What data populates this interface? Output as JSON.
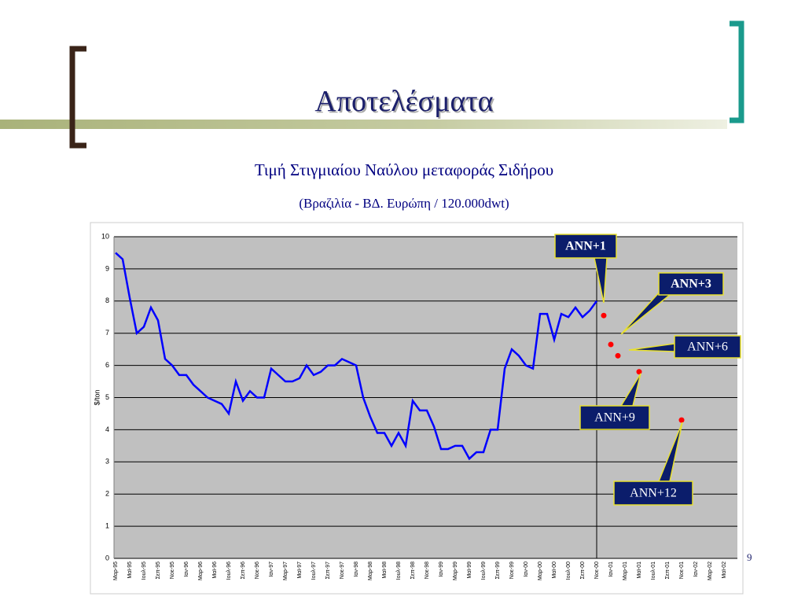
{
  "slide": {
    "title": "Αποτελέσματα",
    "page_number": "9"
  },
  "chart_data": {
    "type": "line",
    "title": "Τιμή Στιγμιαίου Ναύλου μεταφοράς Σιδήρου",
    "subtitle": "(Βραζιλία - ΒΔ. Ευρώπη / 120.000dwt)",
    "y_label": "$/ton",
    "categories": [
      "Μαρ-95",
      null,
      "Μαϊ-95",
      null,
      "Ιουλ-95",
      null,
      "Σεπ-95",
      null,
      "Νοε-95",
      null,
      "Ιαν-96",
      null,
      "Μαρ-96",
      null,
      "Μαϊ-96",
      null,
      "Ιουλ-96",
      null,
      "Σεπ-96",
      null,
      "Νοε-96",
      null,
      "Ιαν-97",
      null,
      "Μαρ-97",
      null,
      "Μαϊ-97",
      null,
      "Ιουλ-97",
      null,
      "Σεπ-97",
      null,
      "Νοε-97",
      null,
      "Ιαν-98",
      null,
      "Μαρ-98",
      null,
      "Μαϊ-98",
      null,
      "Ιουλ-98",
      null,
      "Σεπ-98",
      null,
      "Νοε-98",
      null,
      "Ιαν-99",
      null,
      "Μαρ-99",
      null,
      "Μαϊ-99",
      null,
      "Ιουλ-99",
      null,
      "Σεπ-99",
      null,
      "Νοε-99",
      null,
      "Ιαν-00",
      null,
      "Μαρ-00",
      null,
      "Μαϊ-00",
      null,
      "Ιουλ-00",
      null,
      "Σεπ-00",
      null,
      "Νοε-00",
      null,
      "Ιαν-01",
      null,
      "Μαρ-01",
      null,
      "Μαϊ-01",
      null,
      "Ιουλ-01",
      null,
      "Σεπ-01",
      null,
      "Νοε-01",
      null,
      "Ιαν-02",
      null,
      "Μαρ-02",
      null,
      "Μαϊ-02",
      null
    ],
    "series": [
      {
        "color": "#0000ff",
        "values": [
          9.5,
          9.3,
          8.1,
          7.0,
          7.2,
          7.8,
          7.4,
          6.2,
          6.0,
          5.7,
          5.7,
          5.4,
          5.2,
          5.0,
          4.9,
          4.8,
          4.5,
          5.5,
          4.9,
          5.2,
          5.0,
          5.0,
          5.9,
          5.7,
          5.5,
          5.5,
          5.6,
          6.0,
          5.7,
          5.8,
          6.0,
          6.0,
          6.2,
          6.1,
          6.0,
          5.0,
          4.4,
          3.9,
          3.9,
          3.5,
          3.9,
          3.5,
          4.9,
          4.6,
          4.6,
          4.1,
          3.4,
          3.4,
          3.5,
          3.5,
          3.1,
          3.3,
          3.3,
          4.0,
          4.0,
          5.9,
          6.5,
          6.3,
          6.0,
          5.9,
          7.6,
          7.6,
          6.8,
          7.6,
          7.5,
          7.8,
          7.5,
          7.7,
          8.0,
          null,
          null,
          null,
          null,
          null,
          null,
          null,
          null,
          null,
          null,
          null,
          null,
          null,
          null,
          null,
          null,
          null,
          null,
          null
        ]
      },
      {
        "color": "#ff0000",
        "values": [
          null,
          null,
          null,
          null,
          null,
          null,
          null,
          null,
          null,
          null,
          null,
          null,
          null,
          null,
          null,
          null,
          null,
          null,
          null,
          null,
          null,
          null,
          null,
          null,
          null,
          null,
          null,
          null,
          null,
          null,
          null,
          null,
          null,
          null,
          null,
          null,
          null,
          null,
          null,
          null,
          null,
          null,
          null,
          null,
          null,
          null,
          null,
          null,
          null,
          null,
          null,
          null,
          null,
          null,
          null,
          null,
          null,
          null,
          null,
          null,
          null,
          null,
          null,
          null,
          null,
          null,
          null,
          null,
          null,
          7.55,
          6.65,
          6.3,
          null,
          null,
          5.8,
          null,
          null,
          null,
          null,
          null,
          4.3,
          null,
          null,
          null,
          null,
          null,
          null,
          null
        ]
      }
    ],
    "annotations": [
      "ANN+1",
      "ANN+3",
      "ANN+6",
      "ANN+9",
      "ANN+12"
    ],
    "ylim": [
      0,
      10
    ],
    "yticks": [
      0,
      1,
      2,
      3,
      4,
      5,
      6,
      7,
      8,
      9,
      10
    ],
    "grid": true
  }
}
